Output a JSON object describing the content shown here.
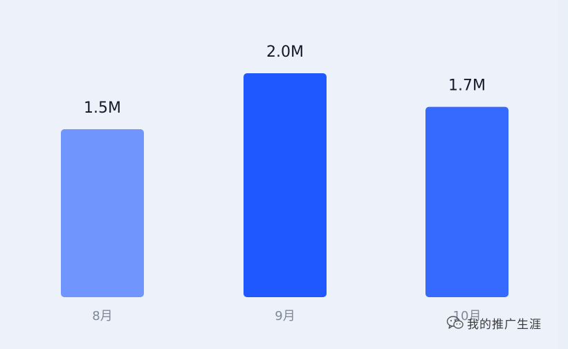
{
  "chart_data": {
    "type": "bar",
    "categories": [
      "8月",
      "9月",
      "10月"
    ],
    "values": [
      1.5,
      2.0,
      1.7
    ],
    "value_labels": [
      "1.5M",
      "2.0M",
      "1.7M"
    ],
    "colors": [
      "#7095fd",
      "#1e58fe",
      "#3669fe"
    ],
    "title": "",
    "xlabel": "",
    "ylabel": "",
    "ylim": [
      0,
      2.0
    ],
    "grid": false,
    "legend": "none"
  },
  "watermark": {
    "text": "我的推广生涯",
    "icon": "wechat-icon"
  }
}
